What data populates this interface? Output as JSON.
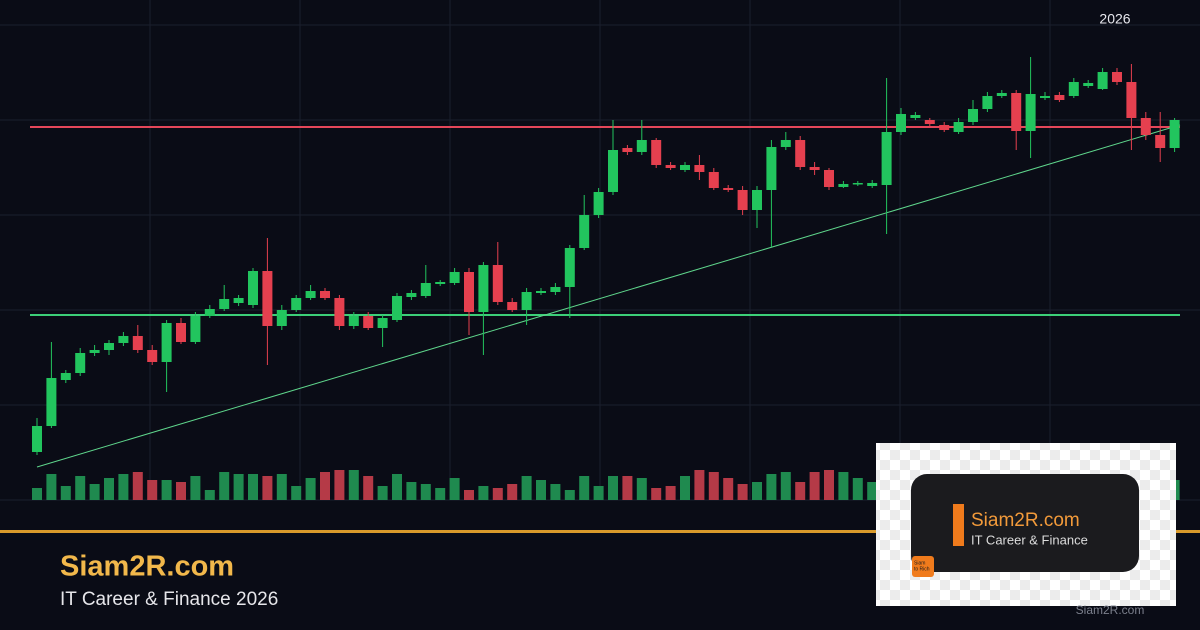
{
  "chart_data": {
    "type": "candlestick",
    "period_label": "2026",
    "ylim": [
      0,
      475
    ],
    "grid": true,
    "up_color": "#22c55e",
    "down_color": "#e5404f",
    "volume_up_color": "#1f8a4f",
    "volume_down_color": "#b53a47",
    "ohlc": [
      [
        48,
        82,
        45,
        74
      ],
      [
        74,
        158,
        72,
        122
      ],
      [
        120,
        130,
        117,
        127
      ],
      [
        127,
        152,
        124,
        147
      ],
      [
        147,
        155,
        144,
        150
      ],
      [
        150,
        160,
        145,
        157
      ],
      [
        157,
        168,
        154,
        164
      ],
      [
        164,
        175,
        147,
        150
      ],
      [
        150,
        155,
        135,
        138
      ],
      [
        138,
        180,
        108,
        177
      ],
      [
        177,
        182,
        156,
        158
      ],
      [
        158,
        188,
        156,
        184
      ],
      [
        184,
        195,
        182,
        191
      ],
      [
        191,
        215,
        189,
        201
      ],
      [
        197,
        205,
        194,
        202
      ],
      [
        195,
        232,
        192,
        229
      ],
      [
        229,
        262,
        135,
        174
      ],
      [
        174,
        195,
        170,
        190
      ],
      [
        190,
        205,
        188,
        202
      ],
      [
        202,
        215,
        200,
        209
      ],
      [
        209,
        212,
        200,
        202
      ],
      [
        202,
        205,
        170,
        174
      ],
      [
        174,
        188,
        171,
        184
      ],
      [
        184,
        188,
        170,
        172
      ],
      [
        172,
        185,
        153,
        182
      ],
      [
        180,
        207,
        178,
        204
      ],
      [
        203,
        210,
        200,
        207
      ],
      [
        204,
        235,
        202,
        217
      ],
      [
        216,
        220,
        214,
        218
      ],
      [
        217,
        232,
        215,
        228
      ],
      [
        228,
        232,
        165,
        188
      ],
      [
        188,
        238,
        145,
        235
      ],
      [
        235,
        258,
        195,
        198
      ],
      [
        198,
        202,
        188,
        190
      ],
      [
        190,
        212,
        175,
        208
      ],
      [
        207,
        212,
        205,
        209
      ],
      [
        208,
        217,
        205,
        213
      ],
      [
        213,
        255,
        182,
        252
      ],
      [
        252,
        305,
        250,
        285
      ],
      [
        285,
        312,
        282,
        308
      ],
      [
        308,
        380,
        305,
        350
      ],
      [
        352,
        355,
        345,
        348
      ],
      [
        348,
        380,
        345,
        360
      ],
      [
        360,
        362,
        332,
        335
      ],
      [
        335,
        338,
        330,
        332
      ],
      [
        330,
        338,
        328,
        335
      ],
      [
        335,
        345,
        320,
        328
      ],
      [
        328,
        332,
        310,
        312
      ],
      [
        312,
        315,
        308,
        310
      ],
      [
        310,
        314,
        285,
        290
      ],
      [
        290,
        314,
        272,
        310
      ],
      [
        310,
        360,
        253,
        353
      ],
      [
        353,
        368,
        350,
        360
      ],
      [
        360,
        364,
        330,
        333
      ],
      [
        333,
        338,
        325,
        330
      ],
      [
        330,
        332,
        310,
        313
      ],
      [
        313,
        319,
        312,
        316
      ],
      [
        316,
        319,
        314,
        317
      ],
      [
        314,
        320,
        312,
        317
      ],
      [
        315,
        422,
        266,
        368
      ],
      [
        368,
        392,
        365,
        386
      ],
      [
        382,
        388,
        380,
        385
      ],
      [
        380,
        382,
        374,
        376
      ],
      [
        375,
        378,
        368,
        370
      ],
      [
        368,
        382,
        366,
        378
      ],
      [
        378,
        400,
        375,
        391
      ],
      [
        391,
        408,
        388,
        404
      ],
      [
        404,
        410,
        402,
        407
      ],
      [
        407,
        410,
        350,
        369
      ],
      [
        369,
        443,
        342,
        406
      ],
      [
        402,
        408,
        400,
        404
      ],
      [
        405,
        408,
        398,
        400
      ],
      [
        404,
        422,
        402,
        418
      ],
      [
        414,
        420,
        412,
        417
      ],
      [
        411,
        432,
        410,
        428
      ],
      [
        428,
        432,
        415,
        418
      ],
      [
        418,
        436,
        350,
        382
      ],
      [
        382,
        388,
        360,
        365
      ],
      [
        365,
        388,
        338,
        352
      ],
      [
        352,
        382,
        348,
        380
      ]
    ],
    "volume": [
      12,
      26,
      14,
      24,
      16,
      22,
      26,
      28,
      20,
      20,
      18,
      24,
      10,
      28,
      26,
      26,
      24,
      26,
      14,
      22,
      28,
      30,
      30,
      24,
      14,
      26,
      18,
      16,
      12,
      22,
      10,
      14,
      12,
      16,
      24,
      20,
      16,
      10,
      24,
      14,
      24,
      24,
      22,
      12,
      14,
      24,
      30,
      28,
      22,
      16,
      18,
      26,
      28,
      18,
      28,
      30,
      28,
      22,
      18,
      26,
      24,
      22,
      20,
      16,
      28,
      26,
      24,
      28,
      22,
      18,
      28,
      30,
      22,
      26,
      28,
      24,
      22,
      18,
      26,
      20
    ],
    "levels": [
      {
        "value": 373,
        "color": "#e5475a"
      },
      {
        "value": 185,
        "color": "#3ccf78"
      }
    ],
    "trendline": {
      "from": 33,
      "to": 375,
      "color": "#5fd68c"
    }
  },
  "brand": {
    "title": "Siam2R.com",
    "subtitle": "IT Career & Finance 2026"
  },
  "logo": {
    "name": "Siam2R.com",
    "tagline": "IT Career & Finance",
    "badge": [
      "Siam",
      "to Rich"
    ]
  },
  "watermark": "Siam2R.com"
}
